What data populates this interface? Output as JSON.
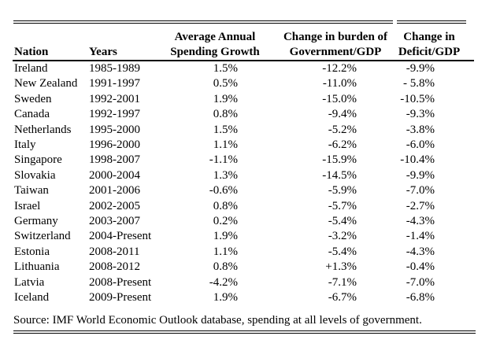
{
  "table": {
    "columns": [
      {
        "id": "nation",
        "line1": "",
        "line2": "Nation"
      },
      {
        "id": "years",
        "line1": "",
        "line2": "Years"
      },
      {
        "id": "spending",
        "line1": "Average Annual",
        "line2": "Spending Growth"
      },
      {
        "id": "burden",
        "line1": "Change in burden of",
        "line2": "Government/GDP"
      },
      {
        "id": "deficit",
        "line1": "Change in",
        "line2": "Deficit/GDP"
      }
    ],
    "rows": [
      {
        "nation": "Ireland",
        "years": "1985-1989",
        "spending": "1.5%",
        "burden": "-12.2%",
        "deficit": "-9.9%"
      },
      {
        "nation": "New Zealand",
        "years": "1991-1997",
        "spending": "0.5%",
        "burden": "-11.0%",
        "deficit": "- 5.8%"
      },
      {
        "nation": "Sweden",
        "years": "1992-2001",
        "spending": "1.9%",
        "burden": "-15.0%",
        "deficit": "-10.5%"
      },
      {
        "nation": "Canada",
        "years": "1992-1997",
        "spending": "0.8%",
        "burden": "-9.4%",
        "deficit": "-9.3%"
      },
      {
        "nation": "Netherlands",
        "years": "1995-2000",
        "spending": "1.5%",
        "burden": "-5.2%",
        "deficit": "-3.8%"
      },
      {
        "nation": "Italy",
        "years": "1996-2000",
        "spending": "1.1%",
        "burden": "-6.2%",
        "deficit": "-6.0%"
      },
      {
        "nation": "Singapore",
        "years": "1998-2007",
        "spending": "-1.1%",
        "burden": "-15.9%",
        "deficit": "-10.4%"
      },
      {
        "nation": "Slovakia",
        "years": "2000-2004",
        "spending": "1.3%",
        "burden": "-14.5%",
        "deficit": "-9.9%"
      },
      {
        "nation": "Taiwan",
        "years": "2001-2006",
        "spending": "-0.6%",
        "burden": "-5.9%",
        "deficit": "-7.0%"
      },
      {
        "nation": "Israel",
        "years": "2002-2005",
        "spending": "0.8%",
        "burden": "-5.7%",
        "deficit": "-2.7%"
      },
      {
        "nation": "Germany",
        "years": "2003-2007",
        "spending": "0.2%",
        "burden": "-5.4%",
        "deficit": "-4.3%"
      },
      {
        "nation": "Switzerland",
        "years": "2004-Present",
        "spending": "1.9%",
        "burden": "-3.2%",
        "deficit": "-1.4%"
      },
      {
        "nation": "Estonia",
        "years": "2008-2011",
        "spending": "1.1%",
        "burden": "-5.4%",
        "deficit": "-4.3%"
      },
      {
        "nation": "Lithuania",
        "years": "2008-2012",
        "spending": "0.8%",
        "burden": "+1.3%",
        "deficit": "-0.4%"
      },
      {
        "nation": "Latvia",
        "years": "2008-Present",
        "spending": "-4.2%",
        "burden": "-7.1%",
        "deficit": "-7.0%"
      },
      {
        "nation": "Iceland",
        "years": "2009-Present",
        "spending": "1.9%",
        "burden": "-6.7%",
        "deficit": "-6.8%"
      }
    ]
  },
  "source_note": "Source: IMF World Economic Outlook database, spending at all levels of government.",
  "colors": {
    "text": "#000000",
    "background": "#ffffff",
    "rule": "#000000"
  }
}
